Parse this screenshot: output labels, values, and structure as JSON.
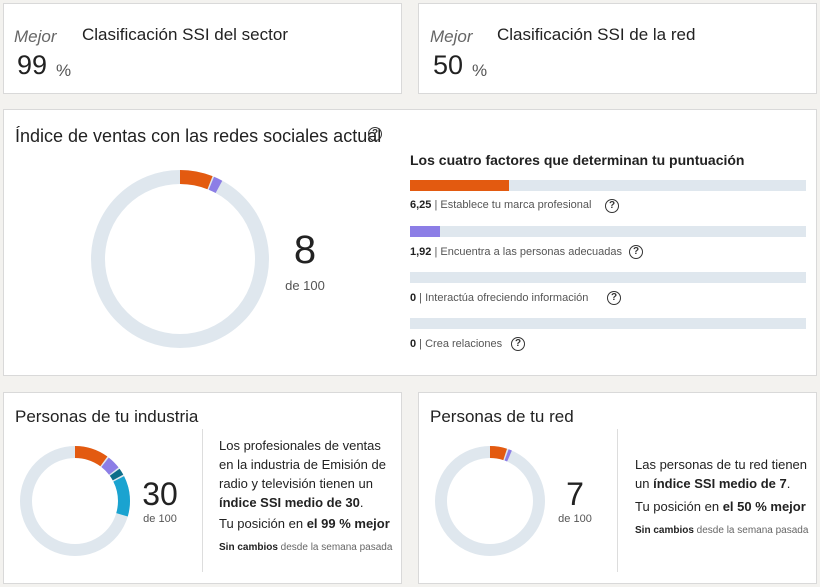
{
  "rank_sector": {
    "prefix": "Mejor",
    "title": "Clasificación SSI del sector",
    "value": "99",
    "unit": "%"
  },
  "rank_network": {
    "prefix": "Mejor",
    "title": "Clasificación SSI de la red",
    "value": "50",
    "unit": "%"
  },
  "main": {
    "title": "Índice de ventas con las redes sociales actual",
    "score": "8",
    "of": "de 100",
    "factors_title": "Los cuatro factores que determinan tu puntuación",
    "factors": [
      {
        "value": "6,25",
        "sep": " | ",
        "label": "Establece tu marca profesional",
        "fraction": 0.25,
        "color": "#e35a10"
      },
      {
        "value": "1,92",
        "sep": " | ",
        "label": "Encuentra a las personas adecuadas",
        "fraction": 0.077,
        "color": "#8c7ee6"
      },
      {
        "value": "0",
        "sep": " | ",
        "label": "Interactúa ofreciendo información",
        "fraction": 0,
        "color": "#1aa3d0"
      },
      {
        "value": "0",
        "sep": " | ",
        "label": "Crea relaciones",
        "fraction": 0,
        "color": "#0e6e8a"
      }
    ]
  },
  "industry": {
    "title": "Personas de tu industria",
    "score": "30",
    "of": "de 100",
    "desc_pre": "Los profesionales de ventas en la industria de Emisión de radio y televisión tienen un ",
    "desc_bold": "índice SSI medio de 30",
    "desc_post": ".",
    "pos_pre": "Tu posición en ",
    "pos_bold": "el 99 % mejor",
    "change_bold": "Sin cambios",
    "change_rest": " desde la semana pasada",
    "segments": [
      10.5,
      4.5,
      2.5,
      12.5
    ]
  },
  "network": {
    "title": "Personas de tu red",
    "score": "7",
    "of": "de 100",
    "desc_pre": "Las personas de tu red tienen un ",
    "desc_bold": "índice SSI medio de 7",
    "desc_post": ".",
    "pos_pre": "Tu posición en ",
    "pos_bold": "el 50 % mejor",
    "change_bold": "Sin cambios",
    "change_rest": " desde la semana pasada",
    "segments": [
      5.5,
      1.5,
      0,
      0
    ]
  },
  "main_segments": [
    6.25,
    1.92,
    0,
    0
  ],
  "colors": {
    "orange": "#e35a10",
    "purple": "#8c7ee6",
    "teal": "#0e6e8a",
    "blue": "#1aa3d0",
    "track": "#dfe7ee"
  },
  "help_icon": "?"
}
